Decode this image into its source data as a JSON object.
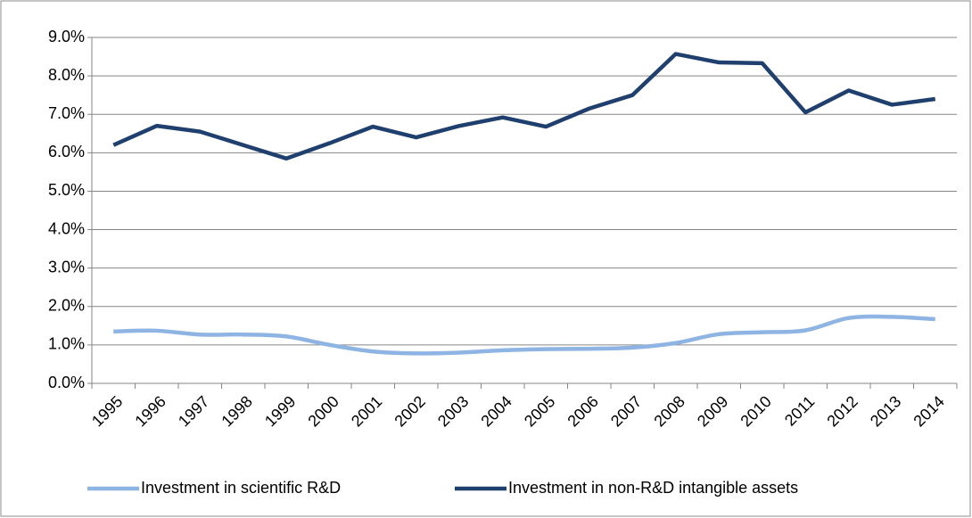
{
  "chart_data": {
    "type": "line",
    "categories": [
      "1995",
      "1996",
      "1997",
      "1998",
      "1999",
      "2000",
      "2001",
      "2002",
      "2003",
      "2004",
      "2005",
      "2006",
      "2007",
      "2008",
      "2009",
      "2010",
      "2011",
      "2012",
      "2013",
      "2014"
    ],
    "series": [
      {
        "name": "Investment in scientific R&D",
        "color": "#8eb4e3",
        "smooth": true,
        "values": [
          1.35,
          1.37,
          1.27,
          1.27,
          1.22,
          1.0,
          0.83,
          0.78,
          0.8,
          0.86,
          0.89,
          0.9,
          0.93,
          1.05,
          1.28,
          1.33,
          1.38,
          1.7,
          1.73,
          1.67
        ]
      },
      {
        "name": "Investment in non-R&D intangible assets",
        "color": "#1f3f6e",
        "smooth": false,
        "values": [
          6.2,
          6.7,
          6.55,
          6.2,
          5.85,
          6.25,
          6.68,
          6.4,
          6.7,
          6.92,
          6.68,
          7.15,
          7.5,
          8.57,
          8.35,
          8.33,
          7.05,
          7.62,
          7.25,
          7.4
        ]
      }
    ],
    "ylim": [
      0,
      9
    ],
    "yticks": [
      {
        "value": 0,
        "label": "0.0%"
      },
      {
        "value": 1,
        "label": "1.0%"
      },
      {
        "value": 2,
        "label": "2.0%"
      },
      {
        "value": 3,
        "label": "3.0%"
      },
      {
        "value": 4,
        "label": "4.0%"
      },
      {
        "value": 5,
        "label": "5.0%"
      },
      {
        "value": 6,
        "label": "6.0%"
      },
      {
        "value": 7,
        "label": "7.0%"
      },
      {
        "value": 8,
        "label": "8.0%"
      },
      {
        "value": 9,
        "label": "9.0%"
      }
    ],
    "grid": true,
    "legend": "bottom"
  }
}
